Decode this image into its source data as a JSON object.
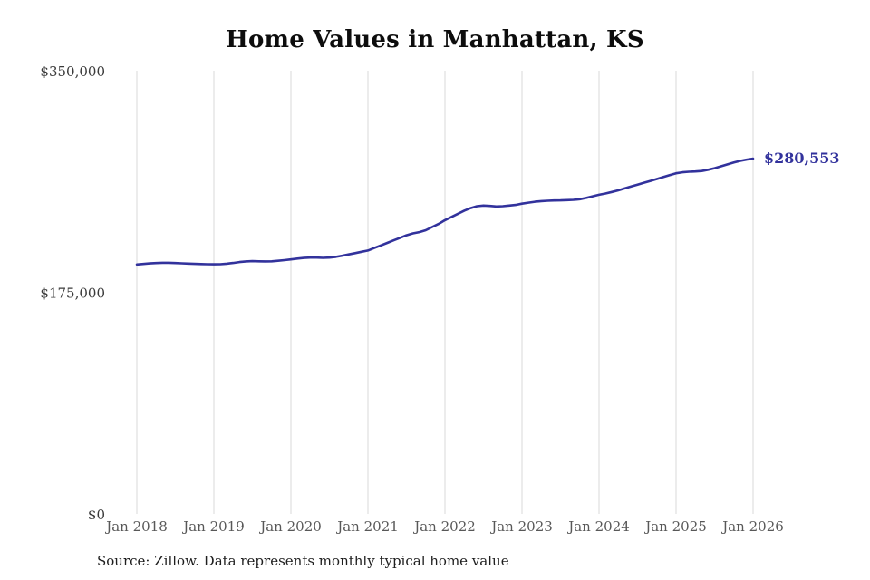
{
  "chart_data": {
    "type": "line",
    "title": "Home Values in Manhattan, KS",
    "source": "Source: Zillow. Data represents monthly typical home value",
    "end_label": "$280,553",
    "latest_value": 280553,
    "xlabel": "",
    "ylabel": "",
    "ylim": [
      0,
      350000
    ],
    "grid": "vertical-only",
    "legend": "none",
    "colors": {
      "line": "#32329c",
      "gridline": "#d8d8d8",
      "background": "#ffffff"
    },
    "y_ticks": [
      {
        "label": "$0",
        "value": 0
      },
      {
        "label": "$175,000",
        "value": 175000
      },
      {
        "label": "$350,000",
        "value": 350000
      }
    ],
    "x_ticks": [
      "Jan 2018",
      "Jan 2019",
      "Jan 2020",
      "Jan 2021",
      "Jan 2022",
      "Jan 2023",
      "Jan 2024",
      "Jan 2025",
      "Jan 2026"
    ],
    "x_start": "Jan 2018",
    "x_interval": "monthly",
    "series": [
      {
        "name": "Typical home value",
        "color": "#32329c",
        "values": [
          197000,
          197400,
          197800,
          198100,
          198300,
          198300,
          198100,
          197900,
          197700,
          197500,
          197300,
          197200,
          197100,
          197200,
          197600,
          198200,
          198900,
          199400,
          199600,
          199500,
          199400,
          199500,
          199900,
          200400,
          201000,
          201600,
          202100,
          202400,
          202400,
          202200,
          202400,
          203000,
          203900,
          204900,
          205900,
          207000,
          208000,
          210000,
          212000,
          214000,
          216000,
          218000,
          220000,
          221500,
          222500,
          224000,
          226500,
          229000,
          232000,
          234500,
          237000,
          239500,
          241500,
          243000,
          243500,
          243200,
          242800,
          243000,
          243500,
          244000,
          245000,
          245800,
          246500,
          247000,
          247300,
          247500,
          247600,
          247800,
          248000,
          248500,
          249500,
          250800,
          252000,
          253000,
          254200,
          255500,
          257000,
          258500,
          260000,
          261500,
          263000,
          264500,
          266000,
          267500,
          269000,
          269800,
          270200,
          270400,
          270800,
          271800,
          273000,
          274500,
          276000,
          277500,
          278800,
          279800,
          280553
        ]
      }
    ]
  }
}
